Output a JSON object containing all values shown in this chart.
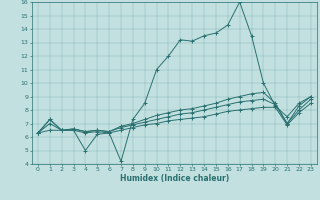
{
  "xlabel": "Humidex (Indice chaleur)",
  "xlim": [
    -0.5,
    23.5
  ],
  "ylim": [
    4,
    16
  ],
  "xticks": [
    0,
    1,
    2,
    3,
    4,
    5,
    6,
    7,
    8,
    9,
    10,
    11,
    12,
    13,
    14,
    15,
    16,
    17,
    18,
    19,
    20,
    21,
    22,
    23
  ],
  "yticks": [
    4,
    5,
    6,
    7,
    8,
    9,
    10,
    11,
    12,
    13,
    14,
    15,
    16
  ],
  "bg_color": "#c2e0e0",
  "line_color": "#2a7070",
  "series": [
    [
      6.3,
      7.3,
      6.5,
      6.5,
      5.0,
      6.2,
      6.3,
      4.2,
      7.3,
      8.5,
      11.0,
      12.0,
      13.2,
      13.1,
      13.5,
      13.7,
      14.3,
      16.0,
      13.5,
      10.0,
      8.3,
      7.5,
      8.5,
      9.0
    ],
    [
      6.3,
      7.3,
      6.5,
      6.6,
      6.4,
      6.5,
      6.4,
      6.8,
      7.0,
      7.3,
      7.6,
      7.8,
      8.0,
      8.1,
      8.3,
      8.5,
      8.8,
      9.0,
      9.2,
      9.3,
      8.5,
      7.0,
      8.3,
      9.0
    ],
    [
      6.3,
      7.0,
      6.5,
      6.6,
      6.4,
      6.5,
      6.4,
      6.7,
      6.9,
      7.1,
      7.3,
      7.5,
      7.7,
      7.8,
      8.0,
      8.2,
      8.4,
      8.6,
      8.7,
      8.8,
      8.4,
      7.0,
      8.0,
      8.8
    ],
    [
      6.3,
      6.5,
      6.5,
      6.5,
      6.3,
      6.4,
      6.3,
      6.5,
      6.7,
      6.9,
      7.0,
      7.2,
      7.3,
      7.4,
      7.5,
      7.7,
      7.9,
      8.0,
      8.1,
      8.2,
      8.2,
      6.9,
      7.8,
      8.5
    ]
  ]
}
